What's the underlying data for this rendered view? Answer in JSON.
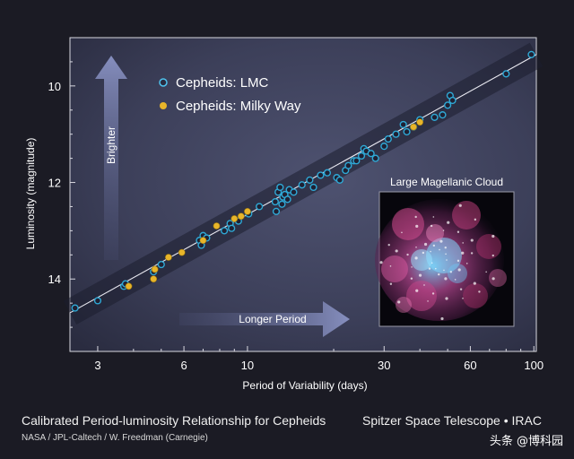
{
  "chart_data": {
    "type": "scatter",
    "xlabel": "Period of Variability (days)",
    "ylabel": "Luminosity (magnitude)",
    "x_scale": "log",
    "y_inverted": true,
    "xlim": [
      2.4,
      102
    ],
    "ylim": [
      15.5,
      9.0
    ],
    "x_ticks": [
      3,
      6,
      10,
      30,
      60,
      100
    ],
    "y_ticks": [
      10,
      12,
      14
    ],
    "grid": false,
    "legend_position": "top-left",
    "legend": [
      "Cepheids: LMC",
      "Cepheids: Milky Way"
    ],
    "series": [
      {
        "name": "Cepheids: LMC",
        "color": "#2fa9d6",
        "points": [
          [
            2.5,
            14.6
          ],
          [
            3.0,
            14.45
          ],
          [
            3.7,
            14.15
          ],
          [
            3.75,
            14.1
          ],
          [
            4.7,
            13.85
          ],
          [
            5.0,
            13.7
          ],
          [
            6.8,
            13.2
          ],
          [
            7.0,
            13.1
          ],
          [
            6.9,
            13.3
          ],
          [
            7.2,
            13.15
          ],
          [
            8.3,
            13.0
          ],
          [
            8.7,
            12.85
          ],
          [
            8.8,
            12.95
          ],
          [
            9.3,
            12.8
          ],
          [
            10.1,
            12.65
          ],
          [
            11.0,
            12.5
          ],
          [
            12.5,
            12.4
          ],
          [
            12.8,
            12.2
          ],
          [
            13.0,
            12.1
          ],
          [
            13.3,
            12.3
          ],
          [
            13.5,
            12.25
          ],
          [
            13.8,
            12.35
          ],
          [
            14.0,
            12.15
          ],
          [
            12.6,
            12.6
          ],
          [
            13.2,
            12.45
          ],
          [
            14.5,
            12.2
          ],
          [
            15.5,
            12.05
          ],
          [
            16.5,
            11.95
          ],
          [
            17.0,
            12.1
          ],
          [
            18.0,
            11.85
          ],
          [
            19.0,
            11.8
          ],
          [
            20.5,
            11.9
          ],
          [
            21.0,
            11.95
          ],
          [
            22.0,
            11.75
          ],
          [
            23.5,
            11.55
          ],
          [
            25.0,
            11.45
          ],
          [
            25.5,
            11.3
          ],
          [
            26.0,
            11.35
          ],
          [
            24.0,
            11.55
          ],
          [
            27.0,
            11.4
          ],
          [
            30.0,
            11.25
          ],
          [
            31.0,
            11.1
          ],
          [
            33.0,
            11.0
          ],
          [
            36.0,
            10.95
          ],
          [
            38.0,
            10.85
          ],
          [
            40.0,
            10.7
          ],
          [
            45.0,
            10.65
          ],
          [
            48.0,
            10.6
          ],
          [
            50.0,
            10.4
          ],
          [
            51.0,
            10.2
          ],
          [
            52.0,
            10.3
          ],
          [
            80.0,
            9.75
          ],
          [
            98.0,
            9.35
          ],
          [
            28.0,
            11.5
          ],
          [
            22.5,
            11.65
          ],
          [
            35.0,
            10.8
          ]
        ]
      },
      {
        "name": "Cepheids: Milky Way",
        "color": "#e8b52a",
        "points": [
          [
            3.85,
            14.15
          ],
          [
            4.7,
            14.0
          ],
          [
            4.75,
            13.8
          ],
          [
            5.3,
            13.55
          ],
          [
            5.9,
            13.45
          ],
          [
            7.0,
            13.2
          ],
          [
            7.8,
            12.9
          ],
          [
            9.0,
            12.75
          ],
          [
            9.5,
            12.7
          ],
          [
            10.0,
            12.6
          ],
          [
            38.0,
            10.85
          ],
          [
            40.0,
            10.75
          ]
        ]
      }
    ],
    "fit_line": {
      "x": [
        2.4,
        102
      ],
      "y": [
        14.7,
        9.35
      ]
    },
    "annotations": [
      "Brighter",
      "Longer Period"
    ]
  },
  "inset": {
    "title": "Large Magellanic Cloud"
  },
  "captions": {
    "title": "Calibrated Period-luminosity Relationship for Cepheids",
    "credit": "NASA / JPL-Caltech / W. Freedman (Carnegie)",
    "mission": "Spitzer Space Telescope • IRAC"
  },
  "watermark": "头条 @博科园"
}
